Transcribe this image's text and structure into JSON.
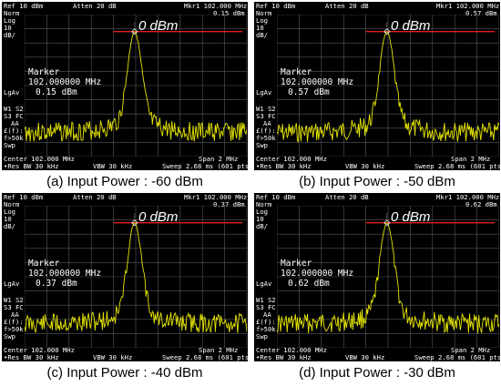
{
  "panels": [
    {
      "ref": "Ref 10 dBm",
      "atten": "Atten 20 dB",
      "mkr": "Mkr1  102.000 MHz",
      "mkr_level": "0.15 dBm",
      "norm": "Norm",
      "log": "Log",
      "scale": "10",
      "unit": "dB/",
      "ref_label": "0 dBm",
      "marker_title": "Marker",
      "marker_freq": "102.000000 MHz",
      "marker_level": "0.15 dBm",
      "lgav": "LgAv",
      "w1s2": "W1  S2",
      "s3fc": "S3  FC",
      "aa": "AA",
      "ff": "£(f):",
      "f50k": "f>50k",
      "swp": "Swp",
      "center": "Center 102.000 MHz",
      "span": "Span 2 MHz",
      "res_bw": "•Res BW 30 kHz",
      "vbw": "VBW 30 kHz",
      "sweep": "Sweep 2.68 ms (601 pts)",
      "caption": "(a) Input Power : -60 dBm",
      "noise_seed": 3
    },
    {
      "ref": "Ref 10 dBm",
      "atten": "Atten 20 dB",
      "mkr": "Mkr1  102.000 MHz",
      "mkr_level": "0.57 dBm",
      "norm": "Norm",
      "log": "Log",
      "scale": "10",
      "unit": "dB/",
      "ref_label": "0 dBm",
      "marker_title": "Marker",
      "marker_freq": "102.000000 MHz",
      "marker_level": "0.57 dBm",
      "lgav": "LgAv",
      "w1s2": "W1  S2",
      "s3fc": "S3  FC",
      "aa": "AA",
      "ff": "£(f):",
      "f50k": "f>50k",
      "swp": "Swp",
      "center": "Center 102.000 MHz",
      "span": "Span 2 MHz",
      "res_bw": "•Res BW 30 kHz",
      "vbw": "VBW 30 kHz",
      "sweep": "Sweep 2.68 ms (601 pts)",
      "caption": "(b) Input Power : -50 dBm",
      "noise_seed": 7
    },
    {
      "ref": "Ref 10 dBm",
      "atten": "Atten 20 dB",
      "mkr": "Mkr1  102.000 MHz",
      "mkr_level": "0.37 dBm",
      "norm": "Norm",
      "log": "Log",
      "scale": "10",
      "unit": "dB/",
      "ref_label": "0 dBm",
      "marker_title": "Marker",
      "marker_freq": "102.000000 MHz",
      "marker_level": "0.37 dBm",
      "lgav": "LgAv",
      "w1s2": "W1  S2",
      "s3fc": "S3  FC",
      "aa": "AA",
      "ff": "£(f):",
      "f50k": "f>50k",
      "swp": "Swp",
      "center": "Center 102.000 MHz",
      "span": "Span 2 MHz",
      "res_bw": "•Res BW 30 kHz",
      "vbw": "VBW 30 kHz",
      "sweep": "Sweep 2.68 ms (601 pts)",
      "caption": "(c) Input Power : -40 dBm",
      "noise_seed": 11
    },
    {
      "ref": "Ref 10 dBm",
      "atten": "Atten 20 dB",
      "mkr": "Mkr1  102.000 MHz",
      "mkr_level": "0.62 dBm",
      "norm": "Norm",
      "log": "Log",
      "scale": "10",
      "unit": "dB/",
      "ref_label": "0 dBm",
      "marker_title": "Marker",
      "marker_freq": "102.000000 MHz",
      "marker_level": "0.62 dBm",
      "lgav": "LgAv",
      "w1s2": "W1  S2",
      "s3fc": "S3  FC",
      "aa": "AA",
      "ff": "£(f):",
      "f50k": "f>50k",
      "swp": "Swp",
      "center": "Center 102.000 MHz",
      "span": "Span 2 MHz",
      "res_bw": "•Res BW 30 kHz",
      "vbw": "VBW 30 kHz",
      "sweep": "Sweep 2.68 ms (601 pts)",
      "caption": "(d) Input Power : -30 dBm",
      "noise_seed": 17
    }
  ],
  "colors": {
    "trace": "#e6e600",
    "ref_line": "#e02020",
    "grid": "#5a5a5a",
    "screen": "#000000"
  }
}
